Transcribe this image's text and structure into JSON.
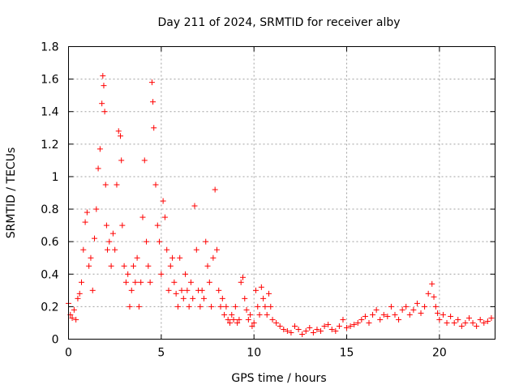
{
  "chart_data": {
    "type": "scatter",
    "title": "Day 211 of 2024, SRMTID for receiver alby",
    "xlabel": "GPS time / hours",
    "ylabel": "SRMTID / TECUs",
    "xlim": [
      0,
      23.0
    ],
    "ylim": [
      0,
      1.8
    ],
    "xticks": [
      0,
      5,
      10,
      15,
      20
    ],
    "xtick_labels": [
      "0",
      "5",
      "10",
      "15",
      "20"
    ],
    "yticks": [
      0,
      0.2,
      0.4,
      0.6,
      0.8,
      1.0,
      1.2,
      1.4,
      1.6,
      1.8
    ],
    "ytick_labels": [
      "0",
      "0.2",
      "0.4",
      "0.6",
      "0.8",
      "1",
      "1.2",
      "1.4",
      "1.6",
      "1.8"
    ],
    "grid": true,
    "marker": "plus",
    "series": [
      {
        "name": "SRMTID",
        "color": "#ff0000",
        "x": [
          0.0,
          0.1,
          0.2,
          0.3,
          0.4,
          0.5,
          0.6,
          0.7,
          0.8,
          0.9,
          1.0,
          1.1,
          1.2,
          1.3,
          1.4,
          1.5,
          1.6,
          1.7,
          1.8,
          1.85,
          1.9,
          1.95,
          2.0,
          2.05,
          2.1,
          2.2,
          2.3,
          2.4,
          2.5,
          2.6,
          2.7,
          2.8,
          2.85,
          2.9,
          3.0,
          3.1,
          3.2,
          3.3,
          3.4,
          3.5,
          3.6,
          3.7,
          3.8,
          3.9,
          4.0,
          4.1,
          4.2,
          4.3,
          4.4,
          4.5,
          4.55,
          4.6,
          4.7,
          4.8,
          4.9,
          5.0,
          5.1,
          5.2,
          5.3,
          5.4,
          5.5,
          5.6,
          5.7,
          5.8,
          5.9,
          6.0,
          6.1,
          6.2,
          6.3,
          6.4,
          6.5,
          6.6,
          6.7,
          6.8,
          6.9,
          7.0,
          7.1,
          7.2,
          7.3,
          7.4,
          7.5,
          7.6,
          7.7,
          7.8,
          7.9,
          8.0,
          8.1,
          8.2,
          8.3,
          8.4,
          8.5,
          8.6,
          8.7,
          8.8,
          8.9,
          9.0,
          9.1,
          9.2,
          9.3,
          9.4,
          9.5,
          9.6,
          9.7,
          9.8,
          9.9,
          10.0,
          10.1,
          10.2,
          10.3,
          10.4,
          10.5,
          10.6,
          10.7,
          10.8,
          10.9,
          11.0,
          11.2,
          11.4,
          11.6,
          11.8,
          12.0,
          12.2,
          12.4,
          12.6,
          12.8,
          13.0,
          13.2,
          13.4,
          13.6,
          13.8,
          14.0,
          14.2,
          14.4,
          14.6,
          14.8,
          15.0,
          15.2,
          15.4,
          15.6,
          15.8,
          16.0,
          16.2,
          16.4,
          16.6,
          16.8,
          17.0,
          17.2,
          17.4,
          17.6,
          17.8,
          18.0,
          18.2,
          18.4,
          18.6,
          18.8,
          19.0,
          19.2,
          19.4,
          19.6,
          19.7,
          19.8,
          19.9,
          20.0,
          20.2,
          20.4,
          20.6,
          20.8,
          21.0,
          21.2,
          21.4,
          21.6,
          21.8,
          22.0,
          22.2,
          22.4,
          22.6,
          22.8
        ],
        "y": [
          0.22,
          0.15,
          0.13,
          0.18,
          0.12,
          0.25,
          0.28,
          0.35,
          0.55,
          0.72,
          0.78,
          0.45,
          0.5,
          0.3,
          0.62,
          0.8,
          1.05,
          1.17,
          1.45,
          1.62,
          1.56,
          1.4,
          0.95,
          0.7,
          0.55,
          0.6,
          0.45,
          0.65,
          0.55,
          0.95,
          1.28,
          1.25,
          1.1,
          0.7,
          0.45,
          0.35,
          0.4,
          0.2,
          0.3,
          0.45,
          0.35,
          0.5,
          0.2,
          0.35,
          0.75,
          1.1,
          0.6,
          0.45,
          0.35,
          1.58,
          1.46,
          1.3,
          0.95,
          0.7,
          0.6,
          0.4,
          0.85,
          0.75,
          0.55,
          0.3,
          0.45,
          0.5,
          0.35,
          0.28,
          0.2,
          0.5,
          0.3,
          0.25,
          0.4,
          0.3,
          0.2,
          0.35,
          0.25,
          0.82,
          0.55,
          0.3,
          0.2,
          0.3,
          0.25,
          0.6,
          0.45,
          0.35,
          0.2,
          0.5,
          0.92,
          0.55,
          0.3,
          0.2,
          0.25,
          0.15,
          0.2,
          0.12,
          0.1,
          0.15,
          0.12,
          0.2,
          0.1,
          0.12,
          0.35,
          0.38,
          0.25,
          0.18,
          0.12,
          0.15,
          0.08,
          0.1,
          0.3,
          0.2,
          0.15,
          0.32,
          0.25,
          0.2,
          0.15,
          0.28,
          0.2,
          0.12,
          0.1,
          0.08,
          0.06,
          0.05,
          0.04,
          0.08,
          0.06,
          0.03,
          0.05,
          0.07,
          0.04,
          0.06,
          0.05,
          0.08,
          0.09,
          0.06,
          0.05,
          0.08,
          0.12,
          0.07,
          0.08,
          0.09,
          0.1,
          0.12,
          0.14,
          0.1,
          0.15,
          0.18,
          0.12,
          0.15,
          0.14,
          0.2,
          0.15,
          0.12,
          0.18,
          0.2,
          0.15,
          0.18,
          0.22,
          0.16,
          0.2,
          0.28,
          0.34,
          0.26,
          0.2,
          0.16,
          0.12,
          0.15,
          0.1,
          0.14,
          0.1,
          0.12,
          0.08,
          0.1,
          0.13,
          0.1,
          0.08,
          0.12,
          0.1,
          0.11,
          0.13
        ]
      }
    ]
  }
}
